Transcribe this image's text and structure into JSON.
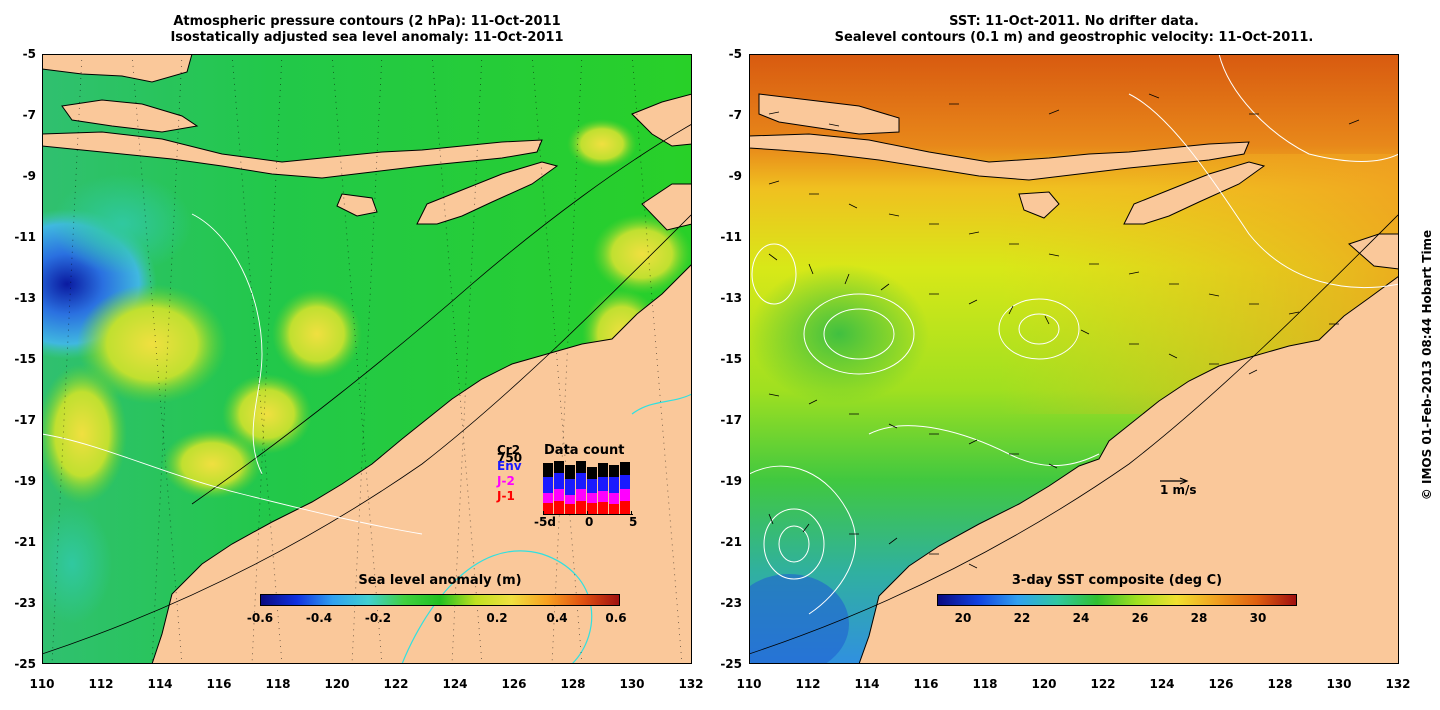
{
  "left_panel": {
    "title_line1": "Atmospheric pressure contours (2 hPa): 11-Oct-2011",
    "title_line2": "Isostatically adjusted sea level anomaly: 11-Oct-2011",
    "colorbar": {
      "title": "Sea level anomaly (m)",
      "ticks": [
        "-0.6",
        "-0.4",
        "-0.2",
        "0",
        "0.2",
        "0.4",
        "0.6"
      ]
    },
    "legend": {
      "satellites": [
        {
          "label": "Cr2",
          "color": "#000000"
        },
        {
          "label": "750",
          "color": "#000000"
        },
        {
          "label": "Env",
          "color": "#1a1aff"
        },
        {
          "label": "J-2",
          "color": "#ff00ff"
        },
        {
          "label": "J-1",
          "color": "#ff0000"
        }
      ],
      "data_count_title": "Data count",
      "axis_ticks": [
        "-5d",
        "0",
        "5"
      ]
    }
  },
  "right_panel": {
    "title_line1": "SST: 11-Oct-2011. No drifter data.",
    "title_line2": "Sealevel contours (0.1 m) and geostrophic velocity: 11-Oct-2011.",
    "colorbar": {
      "title": "3-day SST composite (deg C)",
      "ticks": [
        "20",
        "22",
        "24",
        "26",
        "28",
        "30"
      ]
    },
    "velocity_scale_label": "1 m/s"
  },
  "axes": {
    "y_ticks": [
      "-5",
      "-7",
      "-9",
      "-11",
      "-13",
      "-15",
      "-17",
      "-19",
      "-21",
      "-23",
      "-25"
    ],
    "x_ticks": [
      "110",
      "112",
      "114",
      "116",
      "118",
      "120",
      "122",
      "124",
      "126",
      "128",
      "130",
      "132"
    ]
  },
  "credit": "© IMOS 01-Feb-2013 08:44 Hobart Time",
  "colors": {
    "land": "#fac89a",
    "sla_background": "#22cc22",
    "sst_warm": "#e86a10",
    "sst_mid": "#c8e818",
    "sst_cool": "#38b0e0"
  }
}
